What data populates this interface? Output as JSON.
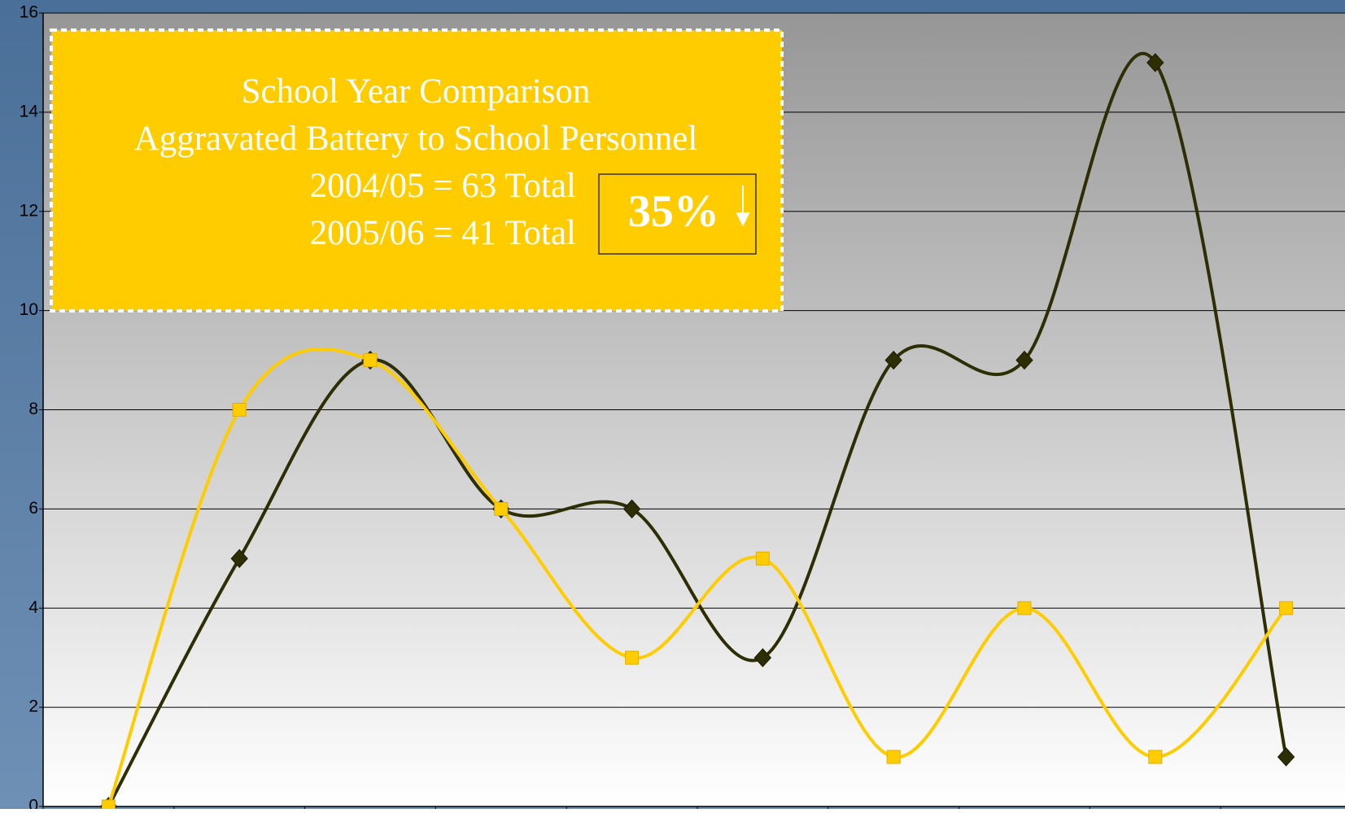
{
  "chart_data": {
    "type": "line",
    "title": "School Year Comparison",
    "subtitle": "Aggravated Battery to School Personnel",
    "annotations": [
      "2004/05 = 63 Total",
      "2005/06 = 41 Total",
      "35%"
    ],
    "categories": [
      null,
      null,
      null,
      null,
      null,
      null,
      null,
      null,
      null,
      null
    ],
    "series": [
      {
        "color": "#2e2e05",
        "marker": "diamond",
        "values": [
          0,
          5,
          9,
          6,
          6,
          3,
          9,
          9,
          15,
          1
        ]
      },
      {
        "color": "#ffcc00",
        "marker": "square",
        "values": [
          0,
          8,
          9,
          6,
          3,
          5,
          1,
          4,
          1,
          4
        ]
      }
    ],
    "ylim": [
      0,
      16
    ],
    "yticks": [
      0,
      2,
      4,
      6,
      8,
      10,
      12,
      14,
      16
    ],
    "grid": true
  }
}
